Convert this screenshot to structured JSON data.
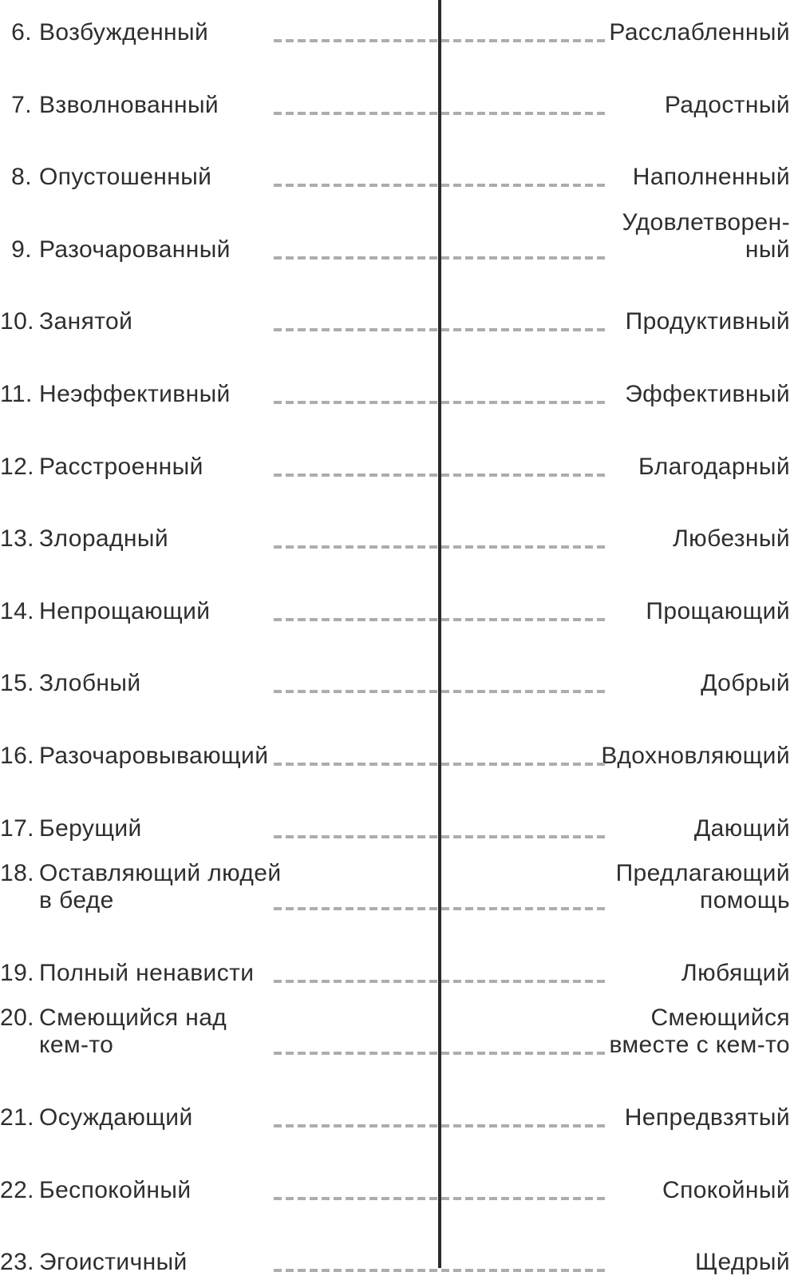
{
  "page": {
    "type": "emotion-word-pairs-worksheet",
    "language": "ru"
  },
  "colors": {
    "page_bg": "#ffffff",
    "divider": "#2b2b2b",
    "dash": "#adadad",
    "text": "#2e2e2e"
  },
  "items": [
    {
      "number": "6.",
      "left": "Возбужденный",
      "right": "Расслабленный"
    },
    {
      "number": "7.",
      "left": "Взволнованный",
      "right": "Радостный"
    },
    {
      "number": "8.",
      "left": "Опустошенный",
      "right": "Наполненный"
    },
    {
      "number": "9.",
      "left": "Разочарованный",
      "right": "Удовлетворен-\nный"
    },
    {
      "number": "10.",
      "left": "Занятой",
      "right": "Продуктивный"
    },
    {
      "number": "11.",
      "left": "Неэффективный",
      "right": "Эффективный"
    },
    {
      "number": "12.",
      "left": "Расстроенный",
      "right": "Благодарный"
    },
    {
      "number": "13.",
      "left": "Злорадный",
      "right": "Любезный"
    },
    {
      "number": "14.",
      "left": "Непрощающий",
      "right": "Прощающий"
    },
    {
      "number": "15.",
      "left": "Злобный",
      "right": "Добрый"
    },
    {
      "number": "16.",
      "left": "Разочаровывающий",
      "right": "Вдохновляющий"
    },
    {
      "number": "17.",
      "left": "Берущий",
      "right": "Дающий"
    },
    {
      "number": "18.",
      "left": "Оставляющий людей\nв беде",
      "right": "Предлагающий\nпомощь"
    },
    {
      "number": "19.",
      "left": "Полный ненависти",
      "right": "Любящий"
    },
    {
      "number": "20.",
      "left": "Смеющийся над\nкем-то",
      "right": "Смеющийся\nвместе с кем-то"
    },
    {
      "number": "21.",
      "left": "Осуждающий",
      "right": "Непредвзятый"
    },
    {
      "number": "22.",
      "left": "Беспокойный",
      "right": "Спокойный"
    },
    {
      "number": "23.",
      "left": "Эгоистичный",
      "right": "Щедрый"
    }
  ]
}
